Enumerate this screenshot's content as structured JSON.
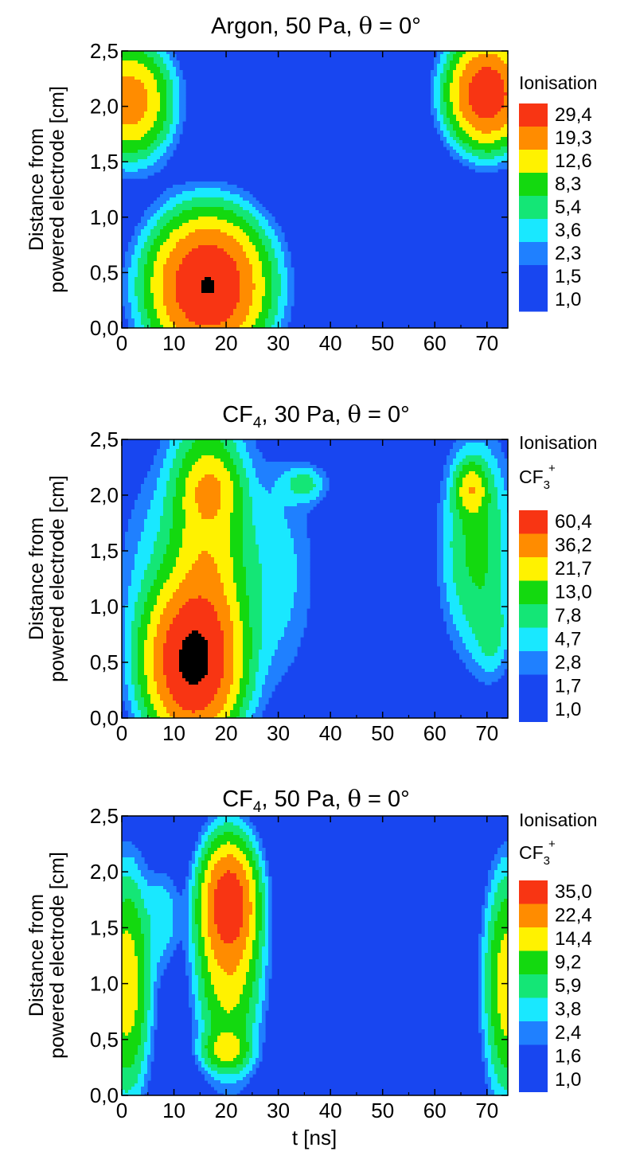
{
  "figure": {
    "shared_x_axis": {
      "label": "t [ns]",
      "range": [
        0,
        74
      ],
      "ticks": [
        "0",
        "10",
        "20",
        "30",
        "40",
        "50",
        "60",
        "70"
      ]
    },
    "shared_y_axis": {
      "label_line1": "Distance from",
      "label_line2": "powered electrode [cm]",
      "range": [
        0,
        2.5
      ],
      "ticks": [
        "0,0",
        "0,5",
        "1,0",
        "1,5",
        "2,0",
        "2,5"
      ]
    }
  },
  "chart_data": [
    {
      "type": "heatmap",
      "title": "Argon, 50 Pa, θ = 0°",
      "title_parts": {
        "pre": "Argon, 50 Pa, ",
        "theta": "θ",
        "post": " = 0°"
      },
      "xlabel": "",
      "ylabel": "Distance from powered electrode [cm]",
      "xlim": [
        0,
        74
      ],
      "ylim": [
        0,
        2.5
      ],
      "legend": {
        "placement": "right",
        "title": "Ionisation",
        "subtitle_base": "",
        "subtitle_sub": "",
        "subtitle_sup": "",
        "levels": [
          "29,4",
          "19,3",
          "12,6",
          "8,3",
          "5,4",
          "3,6",
          "2,3",
          "1,5",
          "1,0"
        ]
      },
      "blobs": [
        {
          "cx": 16.5,
          "cy": 0.38,
          "sx": 9.5,
          "sy": 0.55,
          "peak": 30
        },
        {
          "cx": 1.5,
          "cy": 2.05,
          "sx": 7,
          "sy": 0.45,
          "peak": 16
        },
        {
          "cx": 70,
          "cy": 2.12,
          "sx": 6.5,
          "sy": 0.42,
          "peak": 26
        },
        {
          "cx": 38,
          "cy": 2.05,
          "sx": 2.5,
          "sy": 0.06,
          "peak": 1.1
        },
        {
          "cx": 52,
          "cy": 0.4,
          "sx": 5.5,
          "sy": 0.2,
          "peak": 1.4
        }
      ]
    },
    {
      "type": "heatmap",
      "title": "CF4, 30 Pa, θ = 0°",
      "title_parts": {
        "pre": "CF",
        "sub": "4",
        "mid": ", 30 Pa, ",
        "theta": "θ",
        "post": " = 0°"
      },
      "xlabel": "",
      "ylabel": "Distance from powered electrode [cm]",
      "xlim": [
        0,
        74
      ],
      "ylim": [
        0,
        2.5
      ],
      "legend": {
        "placement": "right",
        "title": "Ionisation",
        "subtitle_base": "CF",
        "subtitle_sub": "3",
        "subtitle_sup": "+",
        "levels": [
          "60,4",
          "36,2",
          "21,7",
          "13,0",
          "7,8",
          "4,7",
          "2,8",
          "1,7",
          "1,0"
        ]
      },
      "blobs": [
        {
          "cx": 13.5,
          "cy": 0.5,
          "sx": 7,
          "sy": 0.55,
          "peak": 62
        },
        {
          "cx": 16.5,
          "cy": 1.45,
          "sx": 6,
          "sy": 1.15,
          "peak": 18
        },
        {
          "cx": 17,
          "cy": 2.05,
          "sx": 4.5,
          "sy": 0.25,
          "peak": 12
        },
        {
          "cx": 8,
          "cy": 1.3,
          "sx": 9,
          "sy": 1.0,
          "peak": 3.5
        },
        {
          "cx": 29,
          "cy": 1.3,
          "sx": 8,
          "sy": 1.0,
          "peak": 3.8
        },
        {
          "cx": 35,
          "cy": 2.1,
          "sx": 4,
          "sy": 0.15,
          "peak": 5
        },
        {
          "cx": 68,
          "cy": 1.55,
          "sx": 6,
          "sy": 0.85,
          "peak": 9
        },
        {
          "cx": 67,
          "cy": 2.05,
          "sx": 2.5,
          "sy": 0.2,
          "peak": 16
        },
        {
          "cx": 71,
          "cy": 0.75,
          "sx": 3,
          "sy": 0.35,
          "peak": 4
        }
      ]
    },
    {
      "type": "heatmap",
      "title": "CF4, 50 Pa, θ = 0°",
      "title_parts": {
        "pre": "CF",
        "sub": "4",
        "mid": ", 50 Pa, ",
        "theta": "θ",
        "post": " = 0°"
      },
      "xlabel": "t [ns]",
      "ylabel": "Distance from powered electrode [cm]",
      "xlim": [
        0,
        74
      ],
      "ylim": [
        0,
        2.5
      ],
      "legend": {
        "placement": "right",
        "title": "Ionisation",
        "subtitle_base": "CF",
        "subtitle_sub": "3",
        "subtitle_sup": "+",
        "levels": [
          "35,0",
          "22,4",
          "14,4",
          "9,2",
          "5,9",
          "3,8",
          "2,4",
          "1,6",
          "1,0"
        ]
      },
      "blobs": [
        {
          "cx": 20.5,
          "cy": 1.75,
          "sx": 4.5,
          "sy": 0.45,
          "peak": 24
        },
        {
          "cx": 20.5,
          "cy": 1.2,
          "sx": 5.5,
          "sy": 0.85,
          "peak": 12
        },
        {
          "cx": 20,
          "cy": 0.4,
          "sx": 4,
          "sy": 0.15,
          "peak": 8
        },
        {
          "cx": 1,
          "cy": 1.0,
          "sx": 4,
          "sy": 0.9,
          "peak": 12
        },
        {
          "cx": 74,
          "cy": 1.0,
          "sx": 4,
          "sy": 0.9,
          "peak": 12
        },
        {
          "cx": 8,
          "cy": 1.6,
          "sx": 3,
          "sy": 0.45,
          "peak": 3
        }
      ]
    }
  ],
  "colors": [
    "#1846f0",
    "#1f80ff",
    "#19e8ff",
    "#14e676",
    "#13d90f",
    "#fff200",
    "#ff8c00",
    "#f83513"
  ]
}
